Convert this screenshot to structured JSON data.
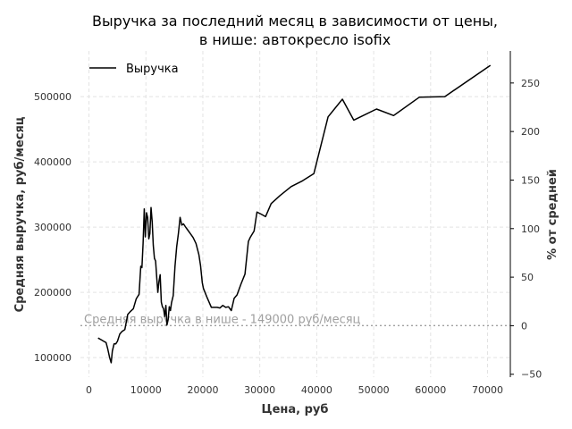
{
  "chart_data": {
    "type": "line",
    "title": [
      "Выручка за последний месяц в зависимости от цены,",
      "в нише: автокресло isofix"
    ],
    "xlabel": "Цена, руб",
    "ylabel": "Средняя выручка, руб/месяц",
    "ylabel_right": "% от средней",
    "xlim": [
      -1500,
      74000
    ],
    "ylim": [
      70000,
      570000
    ],
    "ylim_right": [
      -53,
      283
    ],
    "xticks": [
      0,
      10000,
      20000,
      30000,
      40000,
      50000,
      60000,
      70000
    ],
    "xtick_labels": [
      "0",
      "10000",
      "20000",
      "30000",
      "40000",
      "50000",
      "60000",
      "70000"
    ],
    "yticks": [
      100000,
      200000,
      300000,
      400000,
      500000
    ],
    "ytick_labels": [
      "100000",
      "200000",
      "300000",
      "400000",
      "500000"
    ],
    "yticks_right": [
      -50,
      0,
      50,
      100,
      150,
      200,
      250
    ],
    "ytick_labels_right": [
      "−50",
      "0",
      "50",
      "100",
      "150",
      "200",
      "250"
    ],
    "grid": true,
    "legend": {
      "position": "top-left",
      "entries": [
        "Выручка"
      ]
    },
    "series": [
      {
        "name": "Выручка",
        "color": "#000000",
        "x": [
          1600,
          2200,
          2600,
          3000,
          3300,
          3600,
          3900,
          4100,
          4400,
          4700,
          5000,
          5400,
          5800,
          6300,
          6800,
          7300,
          7800,
          8300,
          8800,
          9100,
          9300,
          9500,
          9700,
          9900,
          10100,
          10300,
          10500,
          10700,
          10900,
          11100,
          11300,
          11500,
          11700,
          11900,
          12100,
          12300,
          12500,
          12700,
          12900,
          13100,
          13300,
          13500,
          13700,
          13900,
          14100,
          14300,
          14500,
          14800,
          15100,
          15400,
          15700,
          16000,
          16300,
          16600,
          16900,
          17300,
          17800,
          18300,
          18800,
          19300,
          19600,
          19900,
          20100,
          20700,
          21500,
          22500,
          23000,
          23500,
          24000,
          24500,
          25000,
          25500,
          26000,
          26700,
          27400,
          28000,
          28300,
          29000,
          29500,
          30200,
          31000,
          32000,
          33500,
          35500,
          37500,
          39500,
          42000,
          44500,
          46500,
          50500,
          53500,
          58000,
          62500,
          70500
        ],
        "y": [
          130000,
          127000,
          125000,
          123000,
          113000,
          101000,
          92000,
          110000,
          121000,
          121000,
          125000,
          136000,
          140000,
          143000,
          166000,
          171000,
          175000,
          190000,
          197000,
          240000,
          238000,
          275000,
          328000,
          285000,
          322000,
          315000,
          282000,
          290000,
          330000,
          308000,
          272000,
          252000,
          248000,
          222000,
          200000,
          217000,
          227000,
          185000,
          178000,
          175000,
          163000,
          180000,
          150000,
          158000,
          178000,
          172000,
          184000,
          195000,
          240000,
          270000,
          290000,
          315000,
          303000,
          305000,
          301000,
          296000,
          290000,
          284000,
          275000,
          258000,
          241000,
          215000,
          206000,
          193000,
          177000,
          177000,
          176000,
          180000,
          177000,
          178000,
          172000,
          191000,
          196000,
          213000,
          228000,
          278000,
          284000,
          294000,
          323000,
          320000,
          316000,
          336000,
          348000,
          362000,
          371000,
          382000,
          469000,
          496000,
          464000,
          481000,
          471000,
          499000,
          500000,
          548000
        ]
      }
    ],
    "reference_line": {
      "y": 149000,
      "label": "Средняя выручка в нише - 149000 руб/месяц",
      "color": "#a0a0a0"
    }
  }
}
